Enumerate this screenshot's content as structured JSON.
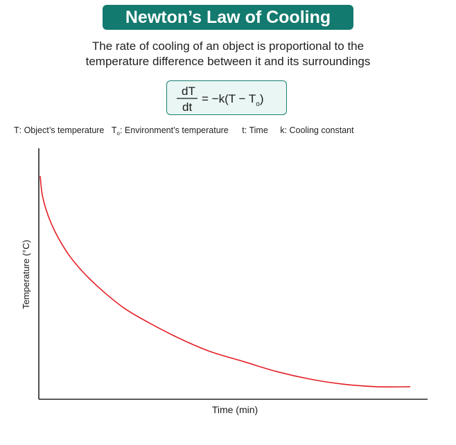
{
  "title": "Newton’s Law of Cooling",
  "description": {
    "line1": "The rate of cooling of an object is proportional to the",
    "line2": "temperature difference between it and its surroundings"
  },
  "formula": {
    "numerator": "dT",
    "denominator": "dt",
    "rhs_prefix": "= −k(T − T",
    "rhs_subscript": "o",
    "rhs_suffix": ")"
  },
  "legend": [
    {
      "symbol": "T",
      "subscript": "",
      "text": ": Object’s temperature"
    },
    {
      "symbol": "T",
      "subscript": "o",
      "text": ": Environment’s temperature"
    },
    {
      "symbol": "t",
      "subscript": "",
      "text": ": Time"
    },
    {
      "symbol": "k",
      "subscript": "",
      "text": ": Cooling constant"
    }
  ],
  "chart_data": {
    "type": "line",
    "xlabel": "Time (min)",
    "ylabel": "Temperature (°C)",
    "xlim": [
      0,
      1
    ],
    "ylim": [
      0,
      1
    ],
    "grid": false,
    "series": [
      {
        "color": "#e31e24",
        "x": [
          0.0,
          0.005,
          0.015,
          0.03,
          0.05,
          0.08,
          0.12,
          0.17,
          0.23,
          0.3,
          0.38,
          0.46,
          0.55,
          0.64,
          0.73,
          0.82,
          0.91,
          1.0
        ],
        "y": [
          0.89,
          0.82,
          0.76,
          0.7,
          0.64,
          0.57,
          0.5,
          0.43,
          0.36,
          0.3,
          0.24,
          0.19,
          0.15,
          0.11,
          0.08,
          0.06,
          0.05,
          0.05
        ]
      }
    ]
  }
}
